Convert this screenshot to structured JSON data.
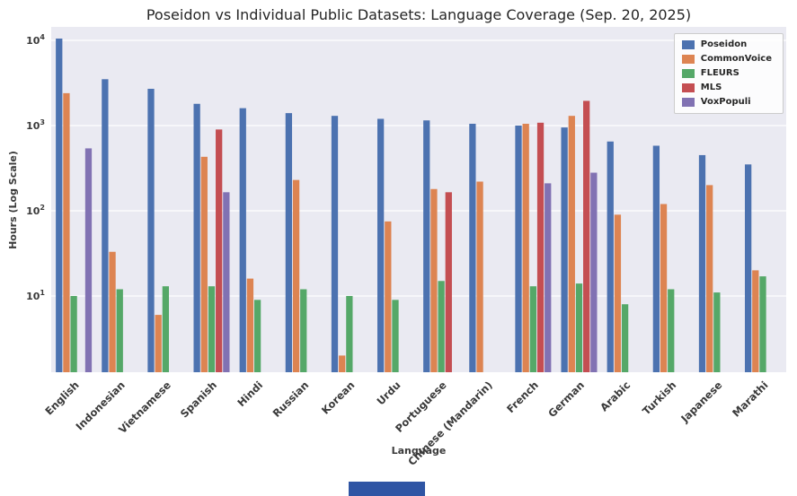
{
  "chart_data": {
    "type": "bar",
    "title": "Poseidon vs Individual Public Datasets: Language Coverage (Sep. 20, 2025)",
    "xlabel": "Language",
    "ylabel": "Hours (Log Scale)",
    "y_scale": "log",
    "ylim": [
      1.27,
      14000
    ],
    "y_ticks": [
      10,
      100,
      1000,
      10000
    ],
    "grid": "horizontal-major-white-on-gray",
    "plot_background": "#eaeaf2",
    "legend_position": "upper-right",
    "categories": [
      "English",
      "Indonesian",
      "Vietnamese",
      "Spanish",
      "Hindi",
      "Russian",
      "Korean",
      "Urdu",
      "Portuguese",
      "Chinese (Mandarin)",
      "French",
      "German",
      "Arabic",
      "Turkish",
      "Japanese",
      "Marathi"
    ],
    "series": [
      {
        "name": "Poseidon",
        "color": "#4c72b0",
        "values": [
          10500,
          3500,
          2700,
          1800,
          1600,
          1400,
          1300,
          1200,
          1150,
          1050,
          1000,
          950,
          650,
          580,
          450,
          350
        ]
      },
      {
        "name": "CommonVoice",
        "color": "#dd8452",
        "values": [
          2400,
          33,
          6,
          430,
          16,
          230,
          2,
          75,
          180,
          220,
          1050,
          1300,
          90,
          120,
          200,
          20
        ]
      },
      {
        "name": "FLEURS",
        "color": "#55a868",
        "values": [
          10,
          12,
          13,
          13,
          9,
          12,
          10,
          9,
          15,
          null,
          13,
          14,
          8,
          12,
          11,
          17
        ]
      },
      {
        "name": "MLS",
        "color": "#c44e52",
        "values": [
          null,
          null,
          null,
          900,
          null,
          null,
          null,
          null,
          165,
          null,
          1080,
          1950,
          null,
          null,
          null,
          null
        ]
      },
      {
        "name": "VoxPopuli",
        "color": "#8172b3",
        "values": [
          540,
          null,
          null,
          165,
          null,
          null,
          null,
          null,
          null,
          null,
          210,
          280,
          null,
          null,
          null,
          null
        ]
      }
    ]
  },
  "decoration": {
    "bottom_strip_color": "#2f55a4"
  }
}
